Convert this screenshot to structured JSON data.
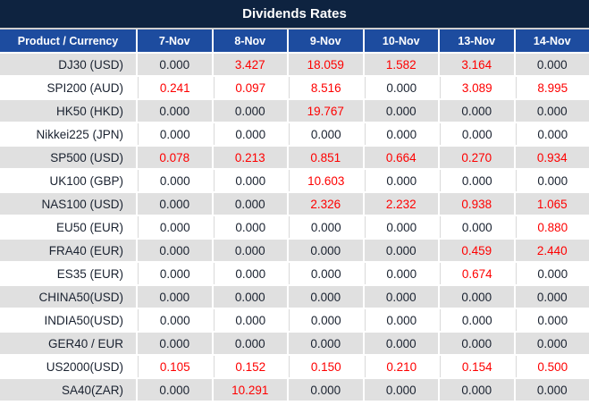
{
  "title": "Dividends Rates",
  "colors": {
    "title_bg": "#0e2340",
    "header_bg": "#1d4c9f",
    "row_alt_bg": "#e0e0e0",
    "value_red": "#fe0000",
    "text_dark": "#1a2230",
    "grid_line": "#d9d9d9"
  },
  "table": {
    "product_header": "Product / Currency",
    "date_columns": [
      "7-Nov",
      "8-Nov",
      "9-Nov",
      "10-Nov",
      "13-Nov",
      "14-Nov"
    ],
    "rows": [
      {
        "product": "DJ30 (USD)",
        "values": [
          "0.000",
          "3.427",
          "18.059",
          "1.582",
          "3.164",
          "0.000"
        ]
      },
      {
        "product": "SPI200 (AUD)",
        "values": [
          "0.241",
          "0.097",
          "8.516",
          "0.000",
          "3.089",
          "8.995"
        ]
      },
      {
        "product": "HK50 (HKD)",
        "values": [
          "0.000",
          "0.000",
          "19.767",
          "0.000",
          "0.000",
          "0.000"
        ]
      },
      {
        "product": "Nikkei225 (JPN)",
        "values": [
          "0.000",
          "0.000",
          "0.000",
          "0.000",
          "0.000",
          "0.000"
        ]
      },
      {
        "product": "SP500 (USD)",
        "values": [
          "0.078",
          "0.213",
          "0.851",
          "0.664",
          "0.270",
          "0.934"
        ]
      },
      {
        "product": "UK100 (GBP)",
        "values": [
          "0.000",
          "0.000",
          "10.603",
          "0.000",
          "0.000",
          "0.000"
        ]
      },
      {
        "product": "NAS100 (USD)",
        "values": [
          "0.000",
          "0.000",
          "2.326",
          "2.232",
          "0.938",
          "1.065"
        ]
      },
      {
        "product": "EU50 (EUR)",
        "values": [
          "0.000",
          "0.000",
          "0.000",
          "0.000",
          "0.000",
          "0.880"
        ]
      },
      {
        "product": "FRA40 (EUR)",
        "values": [
          "0.000",
          "0.000",
          "0.000",
          "0.000",
          "0.459",
          "2.440"
        ]
      },
      {
        "product": "ES35 (EUR)",
        "values": [
          "0.000",
          "0.000",
          "0.000",
          "0.000",
          "0.674",
          "0.000"
        ]
      },
      {
        "product": "CHINA50(USD)",
        "values": [
          "0.000",
          "0.000",
          "0.000",
          "0.000",
          "0.000",
          "0.000"
        ]
      },
      {
        "product": "INDIA50(USD)",
        "values": [
          "0.000",
          "0.000",
          "0.000",
          "0.000",
          "0.000",
          "0.000"
        ]
      },
      {
        "product": "GER40 / EUR",
        "values": [
          "0.000",
          "0.000",
          "0.000",
          "0.000",
          "0.000",
          "0.000"
        ]
      },
      {
        "product": "US2000(USD)",
        "values": [
          "0.105",
          "0.152",
          "0.150",
          "0.210",
          "0.154",
          "0.500"
        ]
      },
      {
        "product": "SA40(ZAR)",
        "values": [
          "0.000",
          "10.291",
          "0.000",
          "0.000",
          "0.000",
          "0.000"
        ]
      }
    ]
  }
}
